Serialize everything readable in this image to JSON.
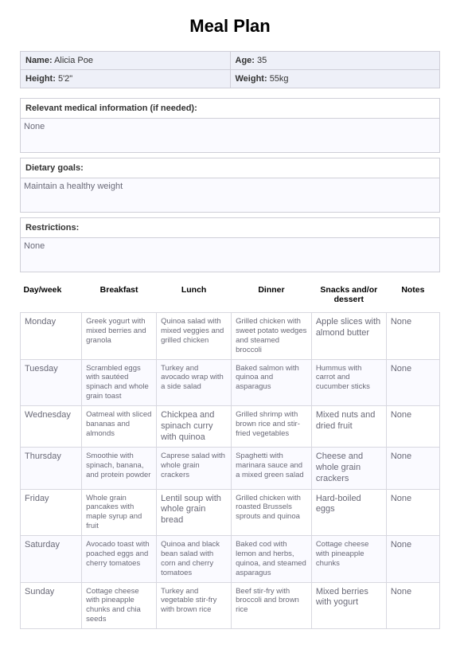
{
  "title": "Meal Plan",
  "info": {
    "name_label": "Name:",
    "name": "Alicia Poe",
    "age_label": "Age:",
    "age": "35",
    "height_label": "Height:",
    "height": "5'2\"",
    "weight_label": "Weight:",
    "weight": "55kg"
  },
  "sections": {
    "medical_label": "Relevant medical information (if needed):",
    "medical": "None",
    "goals_label": "Dietary goals:",
    "goals": "Maintain a healthy weight",
    "restrictions_label": "Restrictions:",
    "restrictions": "None"
  },
  "headers": {
    "day": "Day/week",
    "breakfast": "Breakfast",
    "lunch": "Lunch",
    "dinner": "Dinner",
    "snacks": "Snacks and/or dessert",
    "notes": "Notes"
  },
  "rows": [
    {
      "day": "Monday",
      "breakfast": "Greek yogurt with mixed berries and granola",
      "lunch": "Quinoa salad with mixed veggies and grilled chicken",
      "dinner": "Grilled chicken with sweet potato wedges and steamed broccoli",
      "snacks": "Apple slices with almond butter",
      "notes": "None",
      "lunch_big": false,
      "snacks_big": true,
      "notes_big": true
    },
    {
      "day": "Tuesday",
      "breakfast": "Scrambled eggs with sautéed spinach and whole grain toast",
      "lunch": "Turkey and avocado wrap with a side salad",
      "dinner": "Baked salmon with quinoa and asparagus",
      "snacks": "Hummus with carrot and cucumber sticks",
      "notes": "None",
      "lunch_big": false,
      "snacks_big": false,
      "notes_big": true
    },
    {
      "day": "Wednesday",
      "breakfast": "Oatmeal with sliced bananas and almonds",
      "lunch": "Chickpea and spinach curry with quinoa",
      "dinner": "Grilled shrimp with brown rice and stir-fried vegetables",
      "snacks": "Mixed nuts and dried fruit",
      "notes": "None",
      "lunch_big": true,
      "snacks_big": true,
      "notes_big": true
    },
    {
      "day": "Thursday",
      "breakfast": "Smoothie with spinach, banana, and protein powder",
      "lunch": "Caprese salad with whole grain crackers",
      "dinner": "Spaghetti with marinara sauce and a mixed green salad",
      "snacks": "Cheese and whole grain crackers",
      "notes": "None",
      "lunch_big": false,
      "snacks_big": true,
      "notes_big": true
    },
    {
      "day": "Friday",
      "breakfast": "Whole grain pancakes with maple syrup and fruit",
      "lunch": "Lentil soup with whole grain bread",
      "dinner": "Grilled chicken with roasted Brussels sprouts and quinoa",
      "snacks": "Hard-boiled eggs",
      "notes": "None",
      "lunch_big": true,
      "snacks_big": true,
      "notes_big": true
    },
    {
      "day": "Saturday",
      "breakfast": "Avocado toast with poached eggs and cherry tomatoes",
      "lunch": "Quinoa and black bean salad with corn and cherry tomatoes",
      "dinner": "Baked cod with lemon and herbs, quinoa, and steamed asparagus",
      "snacks": "Cottage cheese with pineapple chunks",
      "notes": "None",
      "lunch_big": false,
      "snacks_big": false,
      "notes_big": true
    },
    {
      "day": "Sunday",
      "breakfast": "Cottage cheese with pineapple chunks and chia seeds",
      "lunch": "Turkey and vegetable stir-fry with brown rice",
      "dinner": "Beef stir-fry with broccoli and brown rice",
      "snacks": "Mixed berries with yogurt",
      "notes": "None",
      "lunch_big": false,
      "snacks_big": true,
      "notes_big": true
    }
  ]
}
